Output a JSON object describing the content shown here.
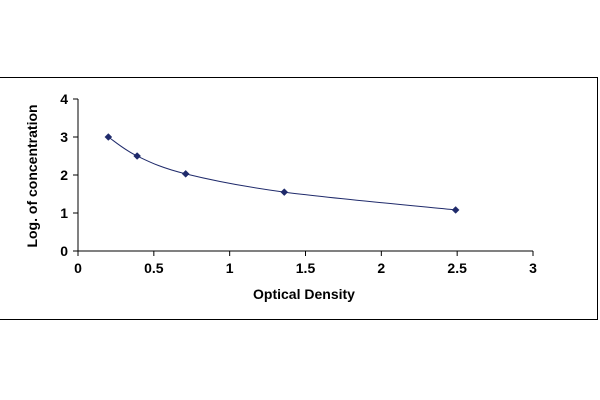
{
  "chart_data": {
    "type": "scatter",
    "title": "",
    "xlabel": "Optical Density",
    "ylabel": "Log. of concentration",
    "xlim": [
      0,
      3
    ],
    "ylim": [
      0,
      4
    ],
    "x_ticks": [
      "0",
      "0.5",
      "1",
      "1.5",
      "2",
      "2.5",
      "3"
    ],
    "y_ticks": [
      "0",
      "1",
      "2",
      "3",
      "4"
    ],
    "grid": false,
    "legend": "none",
    "trendline": "smooth curve",
    "series": [
      {
        "x": [
          0.2,
          0.39,
          0.71,
          1.36,
          2.49
        ],
        "y": [
          3.0,
          2.5,
          2.03,
          1.55,
          1.08
        ],
        "color": "#1f2a6b"
      }
    ]
  }
}
